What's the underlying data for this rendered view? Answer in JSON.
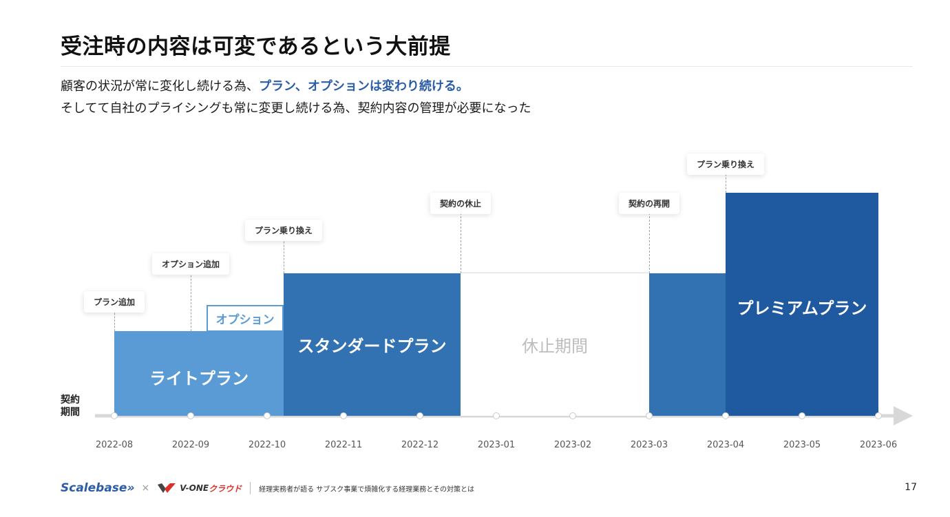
{
  "title": "受注時の内容は可変であるという大前提",
  "subtitle": {
    "line1_prefix": "顧客の状況が常に変化し続ける為、",
    "line1_highlight": "プラン、オプションは変わり続ける。",
    "line2": "そしてて自社のプライシングも常に変更し続ける為、契約内容の管理が必要になった"
  },
  "diagram": {
    "axis_label": [
      "契約",
      "期間"
    ],
    "ticks": [
      "2022-08",
      "2022-09",
      "2022-10",
      "2022-11",
      "2022-12",
      "2023-01",
      "2023-02",
      "2023-03",
      "2023-04",
      "2023-05",
      "2023-06"
    ],
    "blocks": {
      "light": "ライトプラン",
      "option": "オプション",
      "standard": "スタンダードプラン",
      "rest": "休止期間",
      "premium": "プレミアムプラン"
    },
    "events": [
      {
        "label": "プラン追加"
      },
      {
        "label": "オプション追加"
      },
      {
        "label": "プラン乗り換え"
      },
      {
        "label": "契約の休止"
      },
      {
        "label": "契約の再開"
      },
      {
        "label": "プラン乗り換え"
      }
    ]
  },
  "footer": {
    "brand1": "Scalebase»",
    "times": "×",
    "brand2_prefix": "V-ONE",
    "brand2_suffix": "クラウド",
    "note": "経理実務者が語る サブスク事業で煩雑化する経理業務とその対策とは",
    "page": "17"
  },
  "colors": {
    "light": "#5b9bd5",
    "standard": "#3272b3",
    "premium": "#1f5aa0",
    "axis": "#d8d8d8",
    "accent": "#2a5ca8"
  }
}
